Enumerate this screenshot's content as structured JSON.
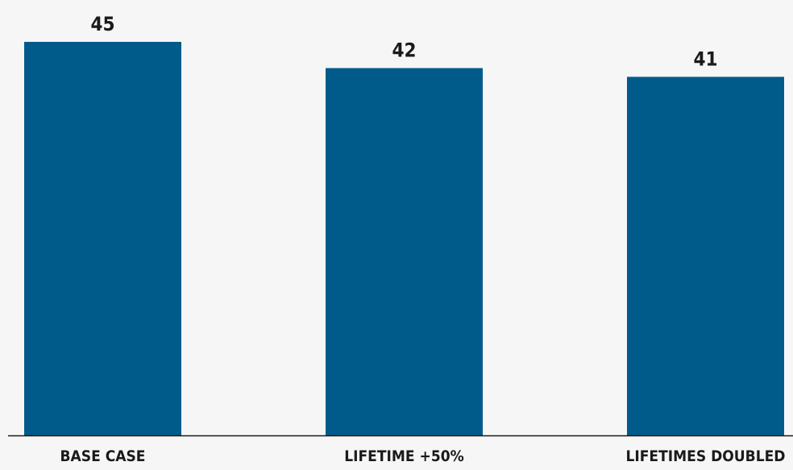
{
  "chart_data": {
    "type": "bar",
    "categories": [
      "BASE CASE",
      "LIFETIME +50%",
      "LIFETIMES DOUBLED"
    ],
    "values": [
      45,
      42,
      41
    ],
    "title": "",
    "xlabel": "",
    "ylabel": "",
    "ylim": [
      0,
      45
    ],
    "grid": false,
    "legend": "none",
    "data_labels": true,
    "colors": {
      "bar": "#005b8a",
      "baseline": "#1a1a1a",
      "background": "#f6f6f6"
    }
  }
}
